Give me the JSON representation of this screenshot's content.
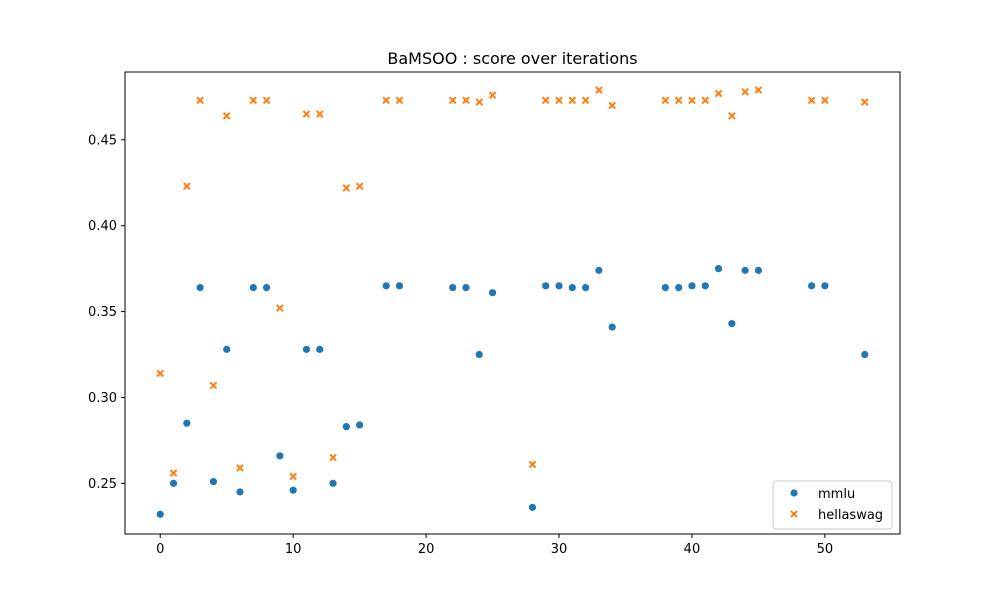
{
  "chart_data": {
    "type": "scatter",
    "title": "BaMSOO : score over iterations",
    "xlabel": "",
    "ylabel": "",
    "xlim": [
      -2.65,
      55.65
    ],
    "ylim": [
      0.2205,
      0.4895
    ],
    "xticks": [
      0,
      10,
      20,
      30,
      40,
      50
    ],
    "yticks": [
      0.25,
      0.3,
      0.35,
      0.4,
      0.45
    ],
    "grid": false,
    "legend_position": "lower-right",
    "series": [
      {
        "name": "mmlu",
        "marker": "circle",
        "color": "#1f77b4",
        "points": [
          [
            0,
            0.232
          ],
          [
            1,
            0.25
          ],
          [
            2,
            0.285
          ],
          [
            3,
            0.364
          ],
          [
            4,
            0.251
          ],
          [
            5,
            0.328
          ],
          [
            6,
            0.245
          ],
          [
            7,
            0.364
          ],
          [
            8,
            0.364
          ],
          [
            9,
            0.266
          ],
          [
            10,
            0.246
          ],
          [
            11,
            0.328
          ],
          [
            12,
            0.328
          ],
          [
            13,
            0.25
          ],
          [
            14,
            0.283
          ],
          [
            15,
            0.284
          ],
          [
            17,
            0.365
          ],
          [
            18,
            0.365
          ],
          [
            22,
            0.364
          ],
          [
            23,
            0.364
          ],
          [
            24,
            0.325
          ],
          [
            25,
            0.361
          ],
          [
            28,
            0.236
          ],
          [
            29,
            0.365
          ],
          [
            30,
            0.365
          ],
          [
            31,
            0.364
          ],
          [
            32,
            0.364
          ],
          [
            33,
            0.374
          ],
          [
            34,
            0.341
          ],
          [
            38,
            0.364
          ],
          [
            39,
            0.364
          ],
          [
            40,
            0.365
          ],
          [
            41,
            0.365
          ],
          [
            42,
            0.375
          ],
          [
            43,
            0.343
          ],
          [
            44,
            0.374
          ],
          [
            45,
            0.374
          ],
          [
            49,
            0.365
          ],
          [
            50,
            0.365
          ],
          [
            53,
            0.325
          ]
        ]
      },
      {
        "name": "hellaswag",
        "marker": "x",
        "color": "#ff7f0e",
        "points": [
          [
            0,
            0.314
          ],
          [
            1,
            0.256
          ],
          [
            2,
            0.423
          ],
          [
            3,
            0.473
          ],
          [
            4,
            0.307
          ],
          [
            5,
            0.464
          ],
          [
            6,
            0.259
          ],
          [
            7,
            0.473
          ],
          [
            8,
            0.473
          ],
          [
            9,
            0.352
          ],
          [
            10,
            0.254
          ],
          [
            11,
            0.465
          ],
          [
            12,
            0.465
          ],
          [
            13,
            0.265
          ],
          [
            14,
            0.422
          ],
          [
            15,
            0.423
          ],
          [
            17,
            0.473
          ],
          [
            18,
            0.473
          ],
          [
            22,
            0.473
          ],
          [
            23,
            0.473
          ],
          [
            24,
            0.472
          ],
          [
            25,
            0.476
          ],
          [
            28,
            0.261
          ],
          [
            29,
            0.473
          ],
          [
            30,
            0.473
          ],
          [
            31,
            0.473
          ],
          [
            32,
            0.473
          ],
          [
            33,
            0.479
          ],
          [
            34,
            0.47
          ],
          [
            38,
            0.473
          ],
          [
            39,
            0.473
          ],
          [
            40,
            0.473
          ],
          [
            41,
            0.473
          ],
          [
            42,
            0.477
          ],
          [
            43,
            0.464
          ],
          [
            44,
            0.478
          ],
          [
            45,
            0.479
          ],
          [
            49,
            0.473
          ],
          [
            50,
            0.473
          ],
          [
            53,
            0.472
          ]
        ]
      }
    ]
  }
}
